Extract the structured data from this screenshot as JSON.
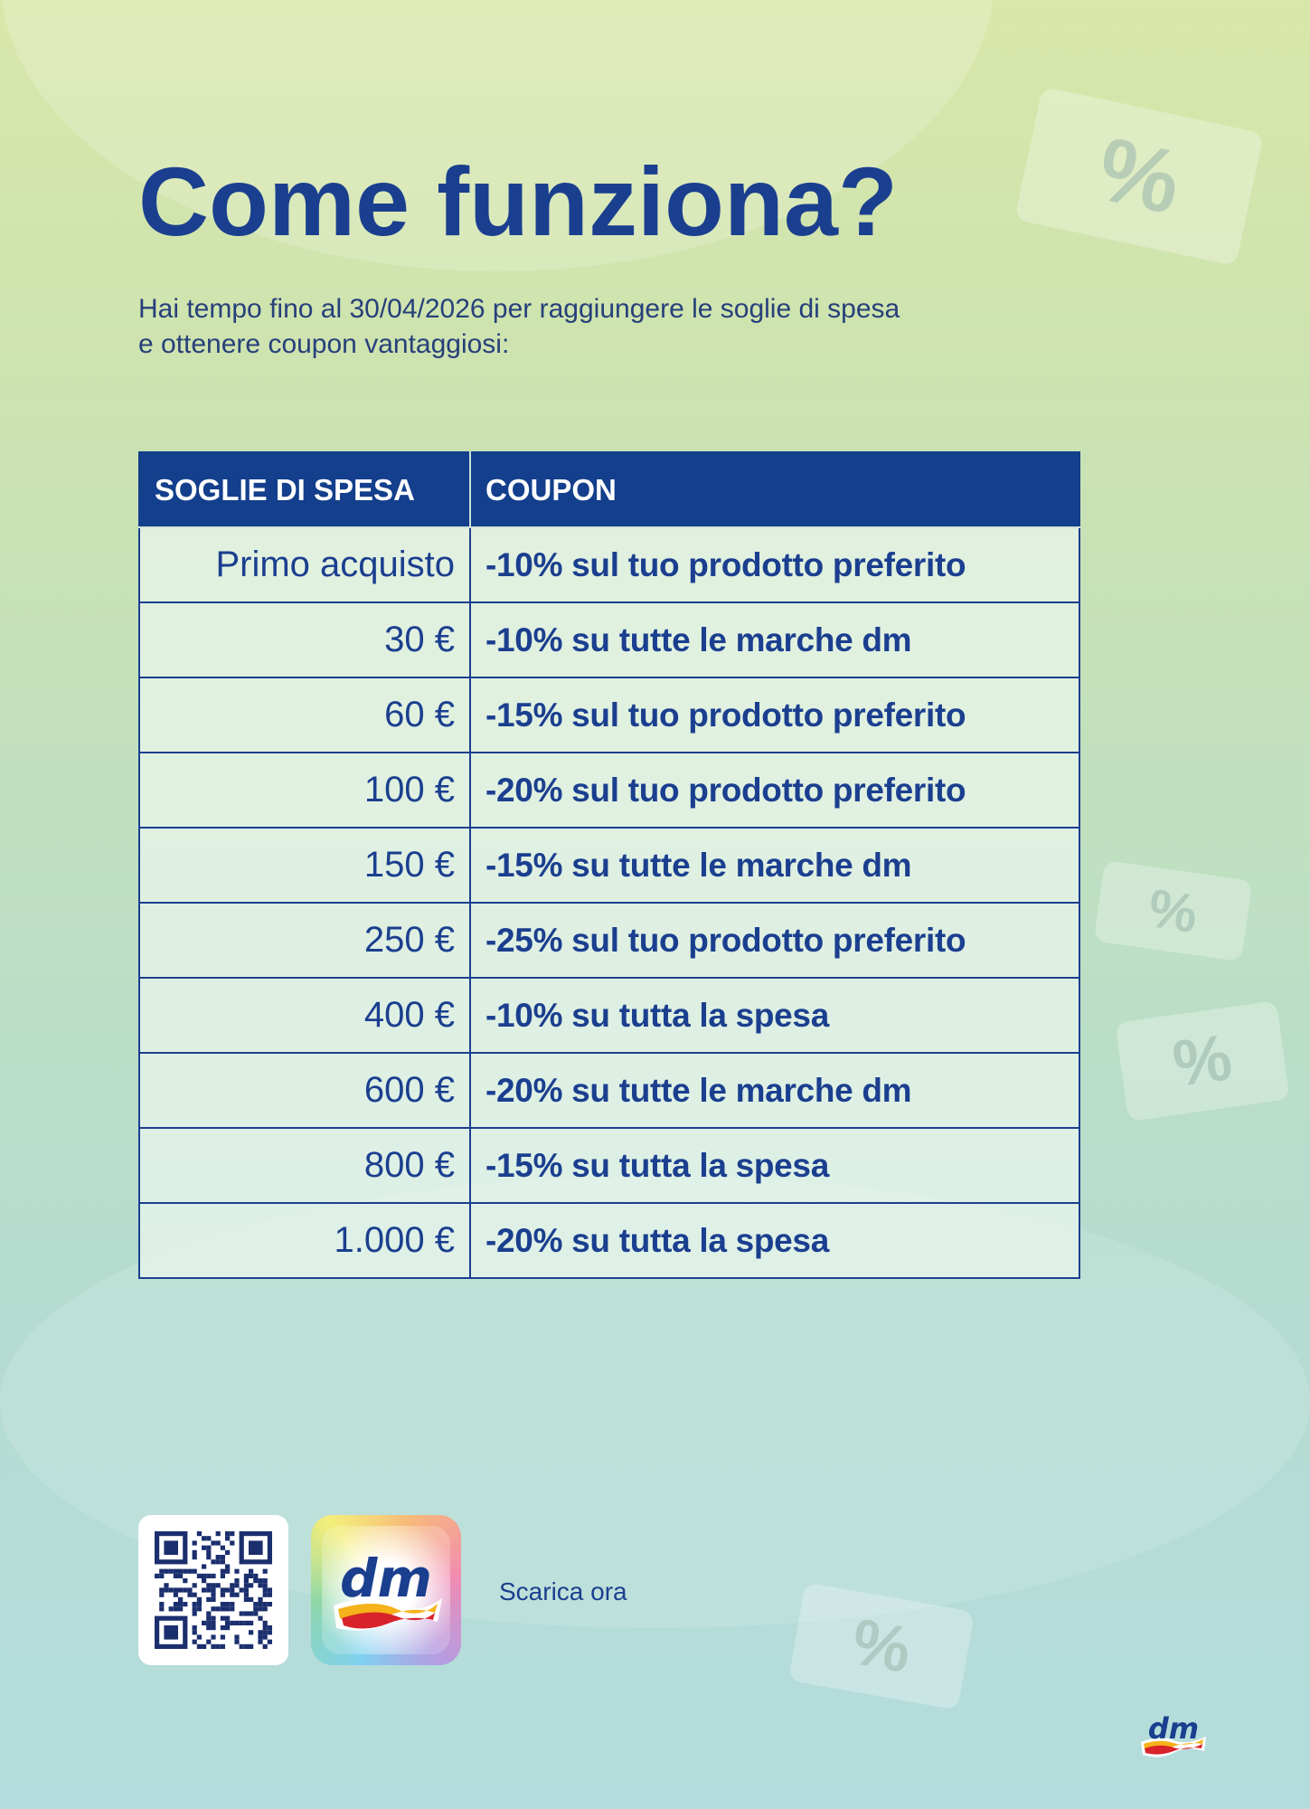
{
  "page": {
    "title": "Come funziona?",
    "subtitle_line1": "Hai tempo fino al 30/04/2026 per raggiungere le soglie di spesa",
    "subtitle_line2": "e ottenere coupon vantaggiosi:"
  },
  "table": {
    "headers": [
      "SOGLIE DI SPESA",
      "COUPON"
    ],
    "rows": [
      {
        "threshold": "Primo acquisto",
        "coupon": "-10% sul tuo prodotto preferito"
      },
      {
        "threshold": "30 €",
        "coupon": "-10% su tutte le marche dm"
      },
      {
        "threshold": "60 €",
        "coupon": "-15% sul tuo prodotto preferito"
      },
      {
        "threshold": "100 €",
        "coupon": "-20% sul tuo prodotto preferito"
      },
      {
        "threshold": "150 €",
        "coupon": "-15% su tutte le marche dm"
      },
      {
        "threshold": "250 €",
        "coupon": "-25% sul tuo prodotto preferito"
      },
      {
        "threshold": "400 €",
        "coupon": "-10% su tutta la spesa"
      },
      {
        "threshold": "600 €",
        "coupon": "-20% su tutte le marche dm"
      },
      {
        "threshold": "800 €",
        "coupon": "-15% su tutta la spesa"
      },
      {
        "threshold": "1.000 €",
        "coupon": "-20% su tutta la spesa"
      }
    ]
  },
  "footer": {
    "download_label": "Scarica ora",
    "app_logo_text": "dm",
    "brand_logo_text": "dm",
    "coupon_symbol": "%"
  },
  "colors": {
    "brand_blue": "#1b3f8f",
    "header_blue": "#133f8c",
    "logo_red": "#d8232a",
    "logo_yellow": "#f6b21a"
  }
}
